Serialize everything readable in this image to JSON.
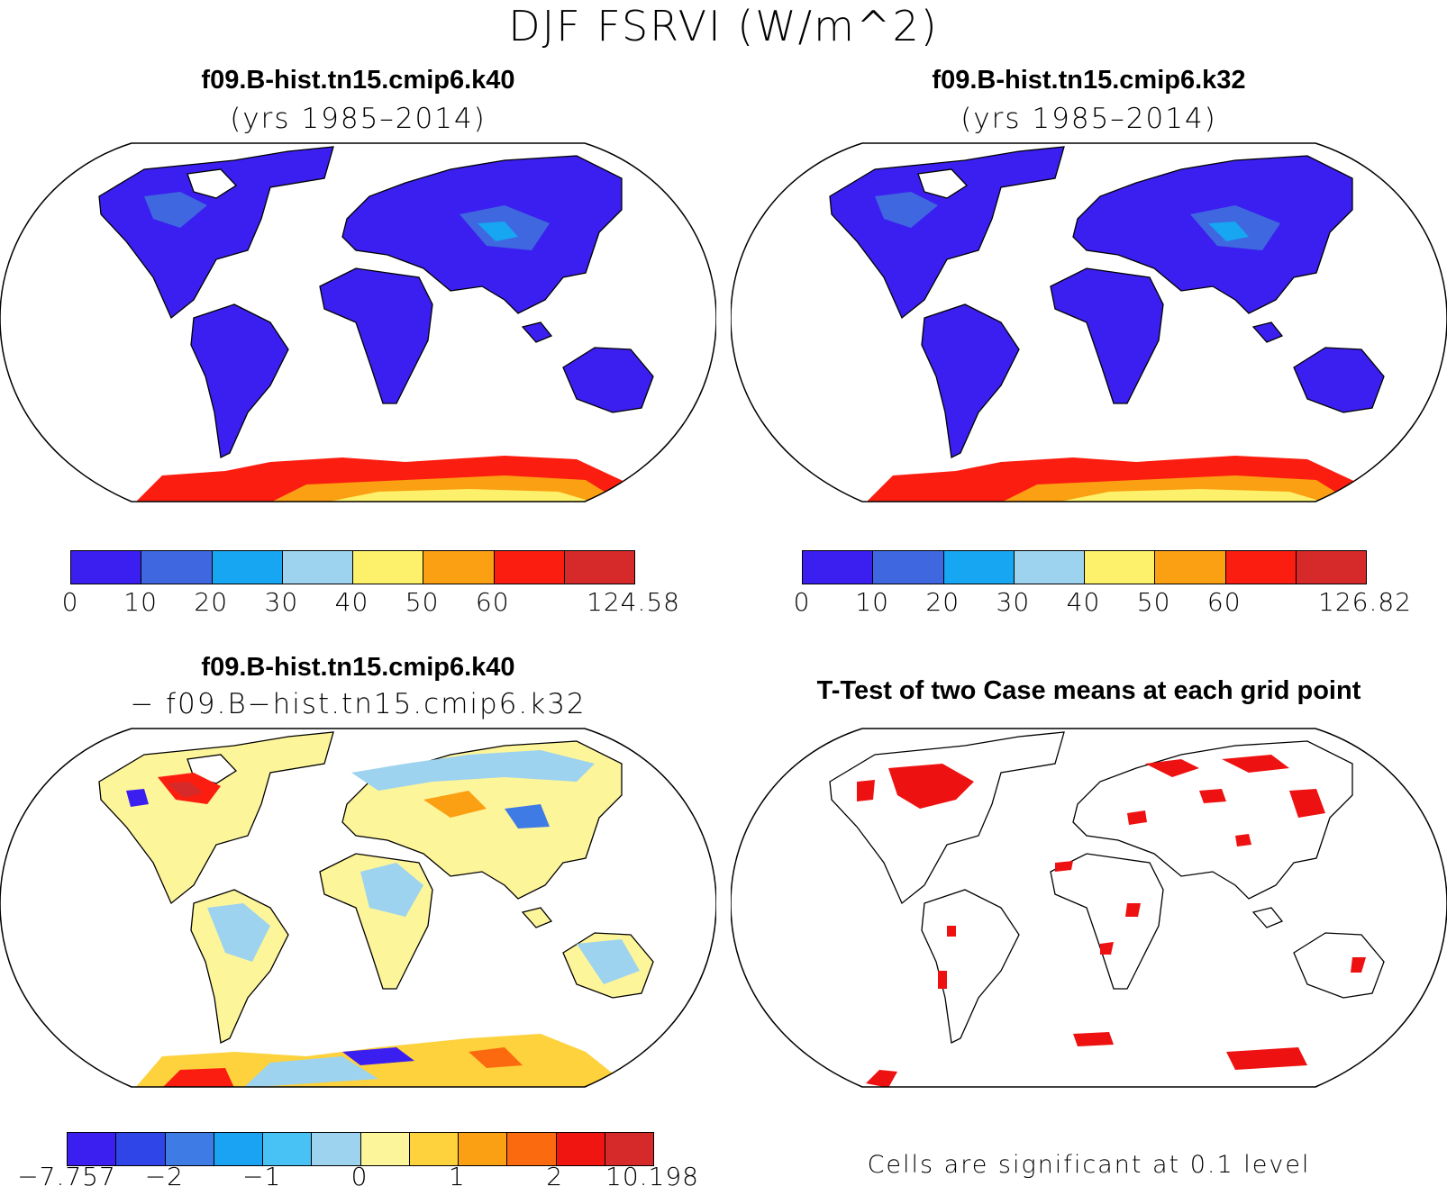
{
  "figure": {
    "title": "DJF FSRVI (W/m^2)"
  },
  "panels": [
    {
      "title": "f09.B-hist.tn15.cmip6.k40",
      "subtitle": "(yrs 1985–2014)",
      "colorbar": {
        "colors": [
          "#3b1ff0",
          "#3f67e0",
          "#16a6f2",
          "#9dd3ef",
          "#fdf06a",
          "#fba012",
          "#fb1e10",
          "#d62a2a"
        ],
        "labels": [
          "0",
          "10",
          "20",
          "30",
          "40",
          "50",
          "60",
          "124.58"
        ]
      }
    },
    {
      "title": "f09.B-hist.tn15.cmip6.k32",
      "subtitle": "(yrs 1985–2014)",
      "colorbar": {
        "colors": [
          "#3b1ff0",
          "#3f67e0",
          "#16a6f2",
          "#9dd3ef",
          "#fdf06a",
          "#fba012",
          "#fb1e10",
          "#d62a2a"
        ],
        "labels": [
          "0",
          "10",
          "20",
          "30",
          "40",
          "50",
          "60",
          "126.82"
        ]
      }
    },
    {
      "title": "f09.B-hist.tn15.cmip6.k40",
      "subtitle": "− f09.B−hist.tn15.cmip6.k32",
      "colorbar": {
        "colors": [
          "#3b1ff0",
          "#2f45e8",
          "#3f7be4",
          "#1aa3f2",
          "#48c2f5",
          "#9dd3ef",
          "#fdf59a",
          "#fdd23c",
          "#fba012",
          "#fc6a10",
          "#f01510",
          "#d62a2a"
        ],
        "labels": [
          "−7.757",
          "−2",
          "−1",
          "0",
          "1",
          "2",
          "10.198"
        ]
      }
    },
    {
      "title": "T-Test of two Case means at each grid point",
      "note": "Cells are significant at 0.1 level",
      "significant_color": "#ee1111"
    }
  ]
}
